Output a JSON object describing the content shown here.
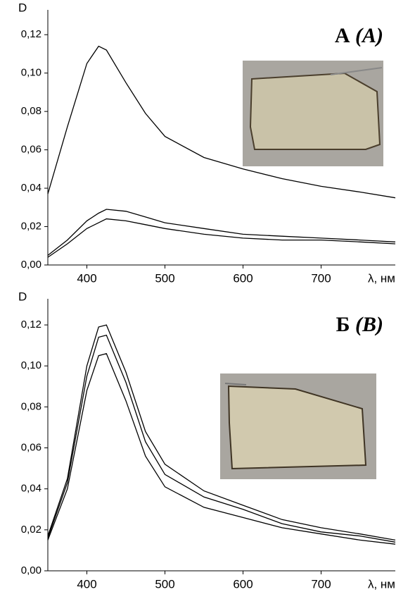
{
  "chart_data": [
    {
      "type": "line",
      "ylabel": "D",
      "xlabel": "λ, нм",
      "panel_label": "А",
      "panel_label_alt": "(A)",
      "x": [
        350,
        375,
        400,
        415,
        425,
        450,
        475,
        500,
        550,
        600,
        650,
        700,
        750,
        795
      ],
      "series": [
        {
          "color": "#000000",
          "values": [
            0.037,
            0.072,
            0.105,
            0.114,
            0.112,
            0.095,
            0.079,
            0.067,
            0.056,
            0.05,
            0.045,
            0.041,
            0.038,
            0.035
          ]
        },
        {
          "color": "#000000",
          "values": [
            0.005,
            0.013,
            0.023,
            0.027,
            0.029,
            0.028,
            0.025,
            0.022,
            0.019,
            0.016,
            0.015,
            0.014,
            0.013,
            0.012
          ]
        },
        {
          "color": "#000000",
          "values": [
            0.004,
            0.011,
            0.019,
            0.022,
            0.024,
            0.023,
            0.021,
            0.019,
            0.016,
            0.014,
            0.013,
            0.013,
            0.012,
            0.011
          ]
        }
      ],
      "xlim": [
        350,
        795
      ],
      "ylim": [
        0,
        0.13
      ],
      "xticks": [
        400,
        500,
        600,
        700
      ],
      "yticks": [
        {
          "value": 0,
          "label": "0,00"
        },
        {
          "value": 0.02,
          "label": "0,02"
        },
        {
          "value": 0.04,
          "label": "0,04"
        },
        {
          "value": 0.06,
          "label": "0,06"
        },
        {
          "value": 0.08,
          "label": "0,08"
        },
        {
          "value": 0.1,
          "label": "0,10"
        },
        {
          "value": 0.12,
          "label": "0,12"
        }
      ]
    },
    {
      "type": "line",
      "ylabel": "D",
      "xlabel": "λ, нм",
      "panel_label": "Б",
      "panel_label_alt": "(B)",
      "x": [
        350,
        375,
        400,
        415,
        425,
        450,
        475,
        500,
        550,
        600,
        650,
        700,
        750,
        795
      ],
      "series": [
        {
          "color": "#000000",
          "values": [
            0.017,
            0.045,
            0.1,
            0.119,
            0.12,
            0.097,
            0.068,
            0.052,
            0.039,
            0.032,
            0.025,
            0.021,
            0.018,
            0.015
          ]
        },
        {
          "color": "#000000",
          "values": [
            0.016,
            0.043,
            0.095,
            0.114,
            0.115,
            0.092,
            0.063,
            0.047,
            0.036,
            0.03,
            0.023,
            0.019,
            0.017,
            0.014
          ]
        },
        {
          "color": "#000000",
          "values": [
            0.015,
            0.04,
            0.088,
            0.105,
            0.106,
            0.083,
            0.056,
            0.041,
            0.031,
            0.026,
            0.021,
            0.018,
            0.015,
            0.013
          ]
        }
      ],
      "xlim": [
        350,
        795
      ],
      "ylim": [
        0,
        0.13
      ],
      "xticks": [
        400,
        500,
        600,
        700
      ],
      "yticks": [
        {
          "value": 0,
          "label": "0,00"
        },
        {
          "value": 0.02,
          "label": "0,02"
        },
        {
          "value": 0.04,
          "label": "0,04"
        },
        {
          "value": 0.06,
          "label": "0,06"
        },
        {
          "value": 0.08,
          "label": "0,08"
        },
        {
          "value": 0.1,
          "label": "0,10"
        },
        {
          "value": 0.12,
          "label": "0,12"
        }
      ]
    }
  ]
}
